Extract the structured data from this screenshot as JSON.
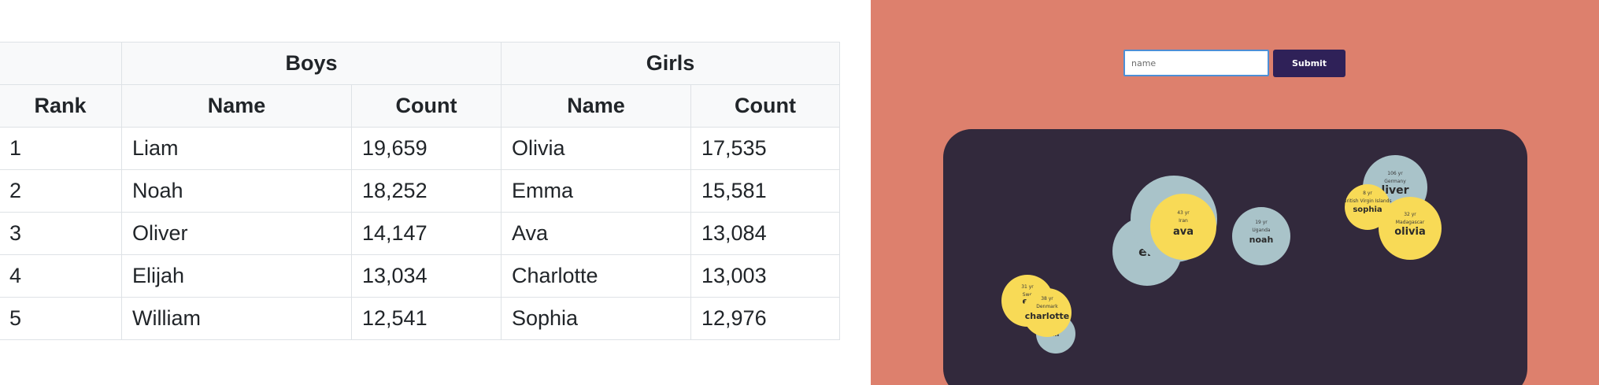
{
  "table": {
    "group_headers": {
      "boys": "Boys",
      "girls": "Girls"
    },
    "column_headers": {
      "rank": "Rank",
      "boy_name": "Name",
      "boy_count": "Count",
      "girl_name": "Name",
      "girl_count": "Count"
    },
    "rows": [
      {
        "rank": "1",
        "boy_name": "Liam",
        "boy_count": "19,659",
        "girl_name": "Olivia",
        "girl_count": "17,535"
      },
      {
        "rank": "2",
        "boy_name": "Noah",
        "boy_count": "18,252",
        "girl_name": "Emma",
        "girl_count": "15,581"
      },
      {
        "rank": "3",
        "boy_name": "Oliver",
        "boy_count": "14,147",
        "girl_name": "Ava",
        "girl_count": "13,084"
      },
      {
        "rank": "4",
        "boy_name": "Elijah",
        "boy_count": "13,034",
        "girl_name": "Charlotte",
        "girl_count": "13,003"
      },
      {
        "rank": "5",
        "boy_name": "William",
        "boy_count": "12,541",
        "girl_name": "Sophia",
        "girl_count": "12,976"
      }
    ]
  },
  "form": {
    "input_placeholder": "name",
    "input_value": "",
    "submit_label": "Submit"
  },
  "bubbles": {
    "colors": {
      "boy": "#a9c3c9",
      "girl": "#f8da56",
      "panel": "#32293c",
      "page": "#dd806d",
      "button": "#2f2158"
    },
    "items": [
      {
        "gender": "boy",
        "name": "eli",
        "country": "",
        "age": ""
      },
      {
        "gender": "boy",
        "name": "W",
        "country": "Un",
        "age": ""
      },
      {
        "gender": "girl",
        "name": "ava",
        "country": "Iran",
        "age": "43 yr"
      },
      {
        "gender": "boy",
        "name": "noah",
        "country": "Uganda",
        "age": "19 yr"
      },
      {
        "gender": "boy",
        "name": "m",
        "country": "",
        "age": ""
      },
      {
        "gender": "girl",
        "name": "er",
        "country": "Swe",
        "age": "31 yr"
      },
      {
        "gender": "girl",
        "name": "charlotte",
        "country": "Denmark",
        "age": "38 yr"
      },
      {
        "gender": "boy",
        "name": "liver",
        "country": "Germany",
        "age": "106 yr"
      },
      {
        "gender": "girl",
        "name": "sophia",
        "country": "British Virgin Islands",
        "age": "8 yr"
      },
      {
        "gender": "girl",
        "name": "olivia",
        "country": "Madagascar",
        "age": "32 yr"
      }
    ]
  }
}
